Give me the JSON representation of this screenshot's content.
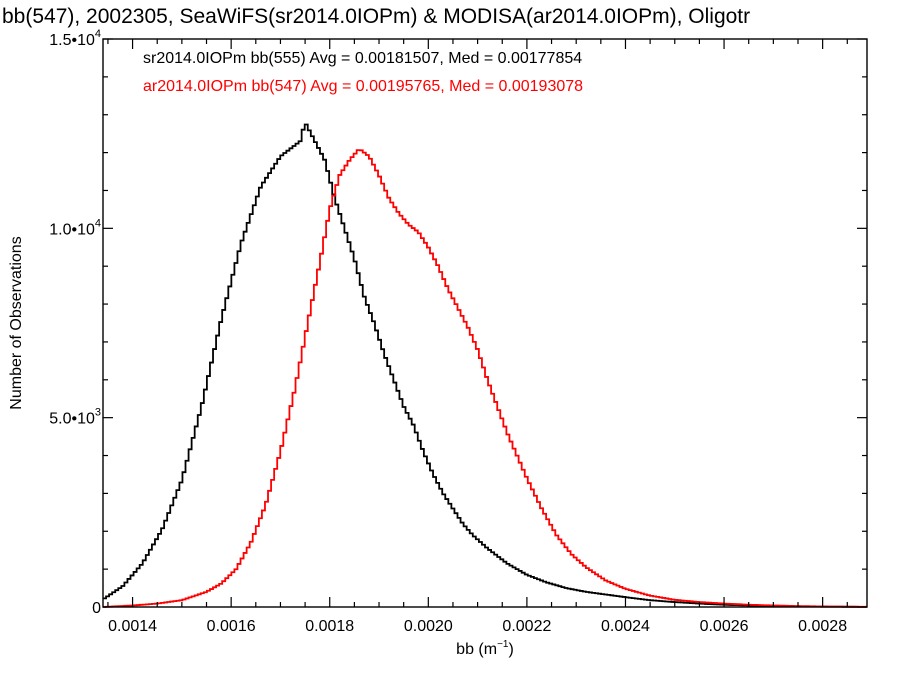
{
  "chart_data": {
    "type": "line",
    "title": "bb(547), 2002305, SeaWiFS(sr2014.0IOPm) & MODISA(ar2014.0IOPm), Oligotr",
    "xlabel_base": "bb (m",
    "xlabel_exp": "−1",
    "xlabel_close": ")",
    "ylabel": "Number of Observations",
    "xlim": [
      0.00134,
      0.00289
    ],
    "ylim": [
      0,
      15000
    ],
    "xticks": [
      {
        "value": 0.0014,
        "label": "0.0014"
      },
      {
        "value": 0.0016,
        "label": "0.0016"
      },
      {
        "value": 0.0018,
        "label": "0.0018"
      },
      {
        "value": 0.002,
        "label": "0.0020"
      },
      {
        "value": 0.0022,
        "label": "0.0022"
      },
      {
        "value": 0.0024,
        "label": "0.0024"
      },
      {
        "value": 0.0026,
        "label": "0.0026"
      },
      {
        "value": 0.0028,
        "label": "0.0028"
      }
    ],
    "yticks": [
      {
        "value": 0,
        "mant": "0",
        "exp": ""
      },
      {
        "value": 5000,
        "mant": "5.0•10",
        "exp": "3"
      },
      {
        "value": 10000,
        "mant": "1.0•10",
        "exp": "4"
      },
      {
        "value": 15000,
        "mant": "1.5•10",
        "exp": "4"
      }
    ],
    "grid": false,
    "legend_placement": "top-left",
    "series": [
      {
        "legend": "sr2014.0IOPm bb(555) Avg = 0.00181507, Med = 0.00177854",
        "color": "#000000",
        "x": [
          0.00134,
          0.00138,
          0.00142,
          0.00146,
          0.0015,
          0.00154,
          0.00158,
          0.00162,
          0.00166,
          0.0017,
          0.00172,
          0.00174,
          0.00175,
          0.00177,
          0.00179,
          0.00181,
          0.00183,
          0.00185,
          0.00187,
          0.00189,
          0.00191,
          0.00193,
          0.00195,
          0.00197,
          0.00199,
          0.00201,
          0.00203,
          0.00205,
          0.00207,
          0.00209,
          0.00212,
          0.00216,
          0.0022,
          0.00224,
          0.00228,
          0.00232,
          0.00236,
          0.0024,
          0.00245,
          0.0025,
          0.00255,
          0.0026,
          0.00265,
          0.0027,
          0.00275,
          0.0028,
          0.00285,
          0.00289
        ],
        "y": [
          200,
          550,
          1150,
          2050,
          3350,
          5300,
          7600,
          9600,
          11100,
          11900,
          12100,
          12300,
          12800,
          12300,
          11800,
          10800,
          10000,
          9200,
          8200,
          7500,
          6700,
          6000,
          5300,
          4800,
          4100,
          3500,
          3000,
          2600,
          2200,
          1900,
          1550,
          1150,
          850,
          650,
          500,
          400,
          330,
          260,
          180,
          130,
          90,
          60,
          40,
          25,
          15,
          8,
          5,
          3
        ]
      },
      {
        "legend": "ar2014.0IOPm bb(547) Avg = 0.00195765, Med = 0.00193078",
        "color": "#ff0000",
        "x": [
          0.00134,
          0.0014,
          0.00145,
          0.0015,
          0.00155,
          0.00158,
          0.00161,
          0.00164,
          0.00167,
          0.0017,
          0.00173,
          0.00176,
          0.00178,
          0.0018,
          0.00182,
          0.00184,
          0.00186,
          0.00188,
          0.0019,
          0.00192,
          0.00194,
          0.00196,
          0.00198,
          0.002,
          0.00202,
          0.00204,
          0.00206,
          0.00208,
          0.0021,
          0.00212,
          0.00214,
          0.00216,
          0.00218,
          0.0022,
          0.00223,
          0.00226,
          0.00229,
          0.00232,
          0.00236,
          0.0024,
          0.00245,
          0.0025,
          0.00255,
          0.0026,
          0.00265,
          0.0027,
          0.00275,
          0.0028,
          0.00285,
          0.00289
        ],
        "y": [
          0,
          40,
          90,
          180,
          400,
          620,
          1000,
          1700,
          2700,
          4100,
          5800,
          7800,
          9100,
          10500,
          11400,
          11800,
          12100,
          11900,
          11400,
          10800,
          10400,
          10100,
          9900,
          9500,
          9000,
          8400,
          7900,
          7400,
          6800,
          6000,
          5300,
          4600,
          4000,
          3400,
          2600,
          1900,
          1400,
          1050,
          700,
          480,
          300,
          190,
          130,
          90,
          60,
          40,
          25,
          15,
          10,
          5
        ]
      }
    ]
  }
}
